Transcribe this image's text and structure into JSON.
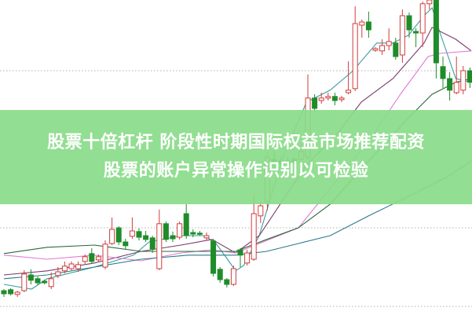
{
  "banner": {
    "line1": "股票十倍杠杆 阶段性时期国际权益市场推荐配资",
    "line2": "股票的账户异常操作识别以可检验"
  },
  "chart_data": {
    "type": "candlestick",
    "title": "",
    "xlabel": "",
    "ylabel": "",
    "ylim": [
      0,
      100
    ],
    "grid": true,
    "gridlines_at": [
      77.5,
      52.5,
      27.5,
      2.5
    ],
    "colors": {
      "up": "#d23c3c",
      "down": "#1e8c2a",
      "grid": "#b0b0b0"
    },
    "candles": [
      [
        7.5,
        8,
        5.5,
        6.5
      ],
      [
        7.8,
        8.3,
        6,
        6.5
      ],
      [
        6.3,
        7.5,
        5.5,
        7
      ],
      [
        7.5,
        14,
        7,
        12.8
      ],
      [
        12.5,
        14.3,
        9.5,
        10.8
      ],
      [
        11.3,
        12,
        9.3,
        10
      ],
      [
        10.5,
        11,
        9.5,
        10
      ],
      [
        8.8,
        13.3,
        8,
        11.3
      ],
      [
        12.3,
        15,
        11.5,
        13.5
      ],
      [
        13.8,
        16.8,
        13,
        15.3
      ],
      [
        14.5,
        16.8,
        13.8,
        16
      ],
      [
        14.5,
        16.8,
        13.5,
        15.8
      ],
      [
        16.8,
        19,
        16,
        18.3
      ],
      [
        19.3,
        21,
        16,
        16.8
      ],
      [
        17.3,
        19,
        16.5,
        18.3
      ],
      [
        15,
        23.5,
        14.3,
        22.3
      ],
      [
        22.5,
        30.8,
        22,
        27
      ],
      [
        27.5,
        28,
        22,
        23
      ],
      [
        23,
        24,
        20.5,
        21.8
      ],
      [
        24.8,
        30.8,
        24,
        26.5
      ],
      [
        26.3,
        27.3,
        23.5,
        24.5
      ],
      [
        25,
        26.5,
        23,
        23.8
      ],
      [
        24.3,
        25,
        19.5,
        20.8
      ],
      [
        14.5,
        33.3,
        14,
        28.8
      ],
      [
        28.8,
        29.5,
        23,
        23.8
      ],
      [
        25,
        26.3,
        23,
        24
      ],
      [
        24.5,
        29.5,
        23.8,
        28.8
      ],
      [
        32,
        35,
        24,
        25
      ],
      [
        26,
        27,
        24.5,
        25.5
      ],
      [
        25.8,
        26.5,
        25,
        25.5
      ],
      [
        24.3,
        26,
        23.5,
        25
      ],
      [
        23.3,
        24,
        12,
        13
      ],
      [
        14.3,
        15,
        10,
        11
      ],
      [
        11,
        11.5,
        8.5,
        9.5
      ],
      [
        9.5,
        15.5,
        9,
        14.5
      ],
      [
        20.5,
        21,
        15,
        18.8
      ],
      [
        16.3,
        20.5,
        15.5,
        19.5
      ],
      [
        17.5,
        38,
        17,
        32
      ],
      [
        31.3,
        35.5,
        29,
        34.5
      ],
      [
        35.8,
        51.8,
        33,
        50
      ],
      [
        49.3,
        52,
        46,
        48.3
      ],
      [
        48.8,
        50,
        47,
        48
      ],
      [
        48.8,
        50,
        47,
        48
      ],
      [
        49.3,
        50,
        47,
        48.3
      ],
      [
        49.3,
        54,
        49,
        51.8
      ],
      [
        50,
        76.3,
        49,
        68.8
      ],
      [
        68.8,
        70,
        64,
        65.5
      ],
      [
        68,
        70.5,
        67,
        68.8
      ],
      [
        68.8,
        70.5,
        68,
        69.3
      ],
      [
        69.3,
        70.5,
        66.5,
        68
      ],
      [
        68.3,
        69.5,
        67.5,
        68.8
      ],
      [
        70.5,
        80.5,
        70,
        71.3
      ],
      [
        71.8,
        98,
        71,
        92.5
      ],
      [
        92,
        93.8,
        88,
        93
      ],
      [
        93,
        96.3,
        88,
        90.5
      ],
      [
        84,
        85,
        83.5,
        84.5
      ],
      [
        83.8,
        87.5,
        82.5,
        85.5
      ],
      [
        85.5,
        91,
        84,
        86.8
      ],
      [
        86.3,
        88,
        81,
        82
      ],
      [
        82.5,
        97,
        80,
        95
      ],
      [
        95,
        96,
        88,
        90.5
      ],
      [
        90,
        91,
        85,
        89.5
      ],
      [
        89.5,
        99.5,
        85,
        98.8
      ],
      [
        98.8,
        100,
        97,
        100
      ],
      [
        100,
        100,
        75,
        80
      ],
      [
        78.8,
        82,
        72,
        75
      ],
      [
        75,
        77,
        68,
        71.3
      ],
      [
        70.5,
        82,
        70,
        73.8
      ],
      [
        71.3,
        79,
        70,
        77.5
      ],
      [
        77.5,
        78.5,
        72,
        73.8
      ]
    ],
    "candle_fields": [
      "open",
      "high",
      "low",
      "close"
    ],
    "moving_averages": [
      {
        "color": "#3a9da0",
        "points": [
          [
            0,
            9.5
          ],
          [
            4.1,
            8
          ],
          [
            6.4,
            11.3
          ],
          [
            13.4,
            15
          ],
          [
            19.2,
            18.8
          ],
          [
            21.5,
            23
          ],
          [
            26.2,
            25
          ],
          [
            29.7,
            25
          ],
          [
            31.4,
            22.5
          ],
          [
            33.1,
            17.5
          ],
          [
            34.3,
            13.8
          ],
          [
            35.5,
            15.5
          ],
          [
            37.8,
            25
          ],
          [
            41.3,
            50
          ],
          [
            44.8,
            67.5
          ],
          [
            48.3,
            71.3
          ],
          [
            51.7,
            77.5
          ],
          [
            55.2,
            86.3
          ],
          [
            57.6,
            86.3
          ],
          [
            59.9,
            88.8
          ],
          [
            62.2,
            95
          ],
          [
            63.4,
            97.5
          ],
          [
            64.5,
            90
          ],
          [
            66.9,
            75
          ],
          [
            69.2,
            73.8
          ]
        ]
      },
      {
        "color": "#7a3a6a",
        "points": [
          [
            0,
            12.5
          ],
          [
            6.4,
            13.8
          ],
          [
            13.4,
            16.3
          ],
          [
            20.3,
            20
          ],
          [
            26.2,
            22
          ],
          [
            30.8,
            23.8
          ],
          [
            34.3,
            19.5
          ],
          [
            37.8,
            25
          ],
          [
            41.3,
            36.3
          ],
          [
            44.8,
            47.5
          ],
          [
            49.4,
            57.5
          ],
          [
            52.9,
            67.5
          ],
          [
            57.6,
            75
          ],
          [
            62.2,
            86.3
          ],
          [
            63.4,
            91.3
          ],
          [
            66.9,
            87.5
          ],
          [
            69.2,
            83.8
          ]
        ]
      },
      {
        "color": "#e07ad6",
        "points": [
          [
            0,
            18.8
          ],
          [
            6.4,
            17.5
          ],
          [
            13.4,
            18.8
          ],
          [
            20.3,
            17
          ],
          [
            26.2,
            19.5
          ],
          [
            30.8,
            20.5
          ],
          [
            34.3,
            19.5
          ],
          [
            37.8,
            22.5
          ],
          [
            43.6,
            27.5
          ],
          [
            48.3,
            40
          ],
          [
            54,
            55
          ],
          [
            58.7,
            70
          ],
          [
            62.8,
            82
          ],
          [
            64.5,
            83
          ],
          [
            69.2,
            83.8
          ]
        ]
      },
      {
        "color": "#2a6a3a",
        "points": [
          [
            0,
            19.3
          ],
          [
            6.4,
            21.3
          ],
          [
            13.4,
            22
          ],
          [
            20.3,
            20
          ],
          [
            27.3,
            20
          ],
          [
            34.3,
            20
          ],
          [
            38.9,
            23.8
          ],
          [
            43.6,
            27.5
          ],
          [
            48.3,
            35
          ],
          [
            54,
            48.8
          ],
          [
            59.9,
            62.5
          ],
          [
            63.4,
            70
          ],
          [
            66.9,
            73.8
          ],
          [
            69.2,
            75
          ]
        ]
      },
      {
        "color": "#2a7a8a",
        "points": [
          [
            0,
            11.3
          ],
          [
            6.4,
            12.5
          ],
          [
            13.4,
            15
          ],
          [
            20.3,
            17.5
          ],
          [
            27.3,
            18.8
          ],
          [
            34.3,
            18.8
          ],
          [
            38.9,
            20
          ],
          [
            43.6,
            22.5
          ],
          [
            48.3,
            25
          ],
          [
            54,
            31.3
          ],
          [
            59.9,
            37.5
          ],
          [
            65.7,
            43.8
          ],
          [
            69.2,
            48.8
          ]
        ]
      }
    ]
  }
}
